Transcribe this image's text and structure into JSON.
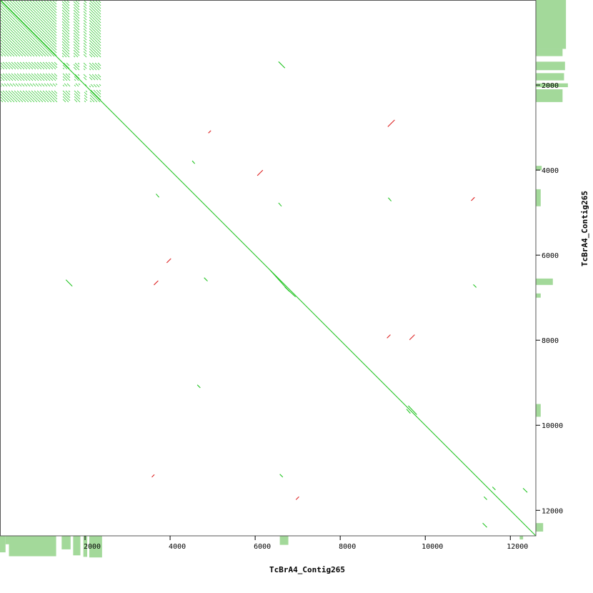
{
  "chart_data": {
    "type": "scatter",
    "subtype": "dot-plot",
    "xlabel": "TcBrA4_Contig265",
    "ylabel": "TcBrA4_Contig265",
    "xlim": [
      0,
      12600
    ],
    "ylim": [
      0,
      12600
    ],
    "x_ticks": [
      2000,
      4000,
      6000,
      8000,
      10000,
      12000
    ],
    "y_ticks": [
      2000,
      4000,
      6000,
      8000,
      10000,
      12000
    ],
    "x_tick_labels": [
      "2000",
      "4000",
      "6000",
      "8000",
      "10000",
      "12000"
    ],
    "y_tick_labels": [
      "2000",
      "4000",
      "6000",
      "8000",
      "10000",
      "12000"
    ],
    "colors": {
      "forward": "#22c422",
      "reverse": "#dd2222",
      "coverage": "#a3d99a",
      "frame": "#555555"
    },
    "repeat_block": {
      "start": 0,
      "end": 2400,
      "gap_ranges": [
        [
          1350,
          1450
        ],
        [
          1650,
          1720
        ],
        [
          1900,
          1960
        ],
        [
          2050,
          2100
        ]
      ]
    },
    "forward_segments": [
      [
        0,
        0,
        12600,
        12600
      ],
      [
        6550,
        1450,
        6700,
        1600
      ],
      [
        4520,
        3780,
        4580,
        3850
      ],
      [
        3670,
        4560,
        3740,
        4640
      ],
      [
        6550,
        4770,
        6620,
        4850
      ],
      [
        9130,
        4650,
        9200,
        4730
      ],
      [
        1550,
        6580,
        1700,
        6730
      ],
      [
        4800,
        6530,
        4880,
        6610
      ],
      [
        6350,
        6350,
        6800,
        6850
      ],
      [
        6700,
        6750,
        6950,
        6980
      ],
      [
        11130,
        6690,
        11200,
        6760
      ],
      [
        4640,
        9050,
        4710,
        9120
      ],
      [
        9600,
        9540,
        9800,
        9750
      ],
      [
        9560,
        9620,
        9650,
        9720
      ],
      [
        6580,
        11150,
        6650,
        11220
      ],
      [
        11580,
        11450,
        11650,
        11520
      ],
      [
        11380,
        11680,
        11450,
        11750
      ],
      [
        12300,
        11480,
        12400,
        11580
      ],
      [
        11350,
        12300,
        11450,
        12400
      ]
    ],
    "reverse_segments": [
      [
        9120,
        2980,
        9280,
        2820
      ],
      [
        4900,
        3130,
        4960,
        3070
      ],
      [
        6050,
        4130,
        6180,
        4000
      ],
      [
        11080,
        4720,
        11160,
        4640
      ],
      [
        3920,
        6180,
        4020,
        6080
      ],
      [
        3620,
        6700,
        3720,
        6600
      ],
      [
        9100,
        7950,
        9180,
        7870
      ],
      [
        9630,
        7990,
        9750,
        7870
      ],
      [
        3570,
        11220,
        3630,
        11160
      ],
      [
        6960,
        11750,
        7030,
        11680
      ]
    ],
    "x_coverage": [
      [
        0,
        130,
        0.55
      ],
      [
        130,
        210,
        0.28
      ],
      [
        210,
        1320,
        0.68
      ],
      [
        1450,
        1660,
        0.45
      ],
      [
        1720,
        1890,
        0.65
      ],
      [
        1960,
        2050,
        0.7
      ],
      [
        2100,
        2400,
        0.72
      ],
      [
        6580,
        6780,
        0.3
      ],
      [
        12220,
        12300,
        0.12
      ]
    ],
    "y_coverage": [
      [
        0,
        1150,
        0.62
      ],
      [
        1150,
        1320,
        0.55
      ],
      [
        1450,
        1650,
        0.6
      ],
      [
        1720,
        1890,
        0.58
      ],
      [
        1960,
        2050,
        0.66
      ],
      [
        2100,
        2400,
        0.55
      ],
      [
        3900,
        4000,
        0.12
      ],
      [
        4450,
        4850,
        0.1
      ],
      [
        6550,
        6700,
        0.35
      ],
      [
        6900,
        7000,
        0.1
      ],
      [
        9500,
        9800,
        0.1
      ],
      [
        12300,
        12500,
        0.15
      ]
    ]
  }
}
